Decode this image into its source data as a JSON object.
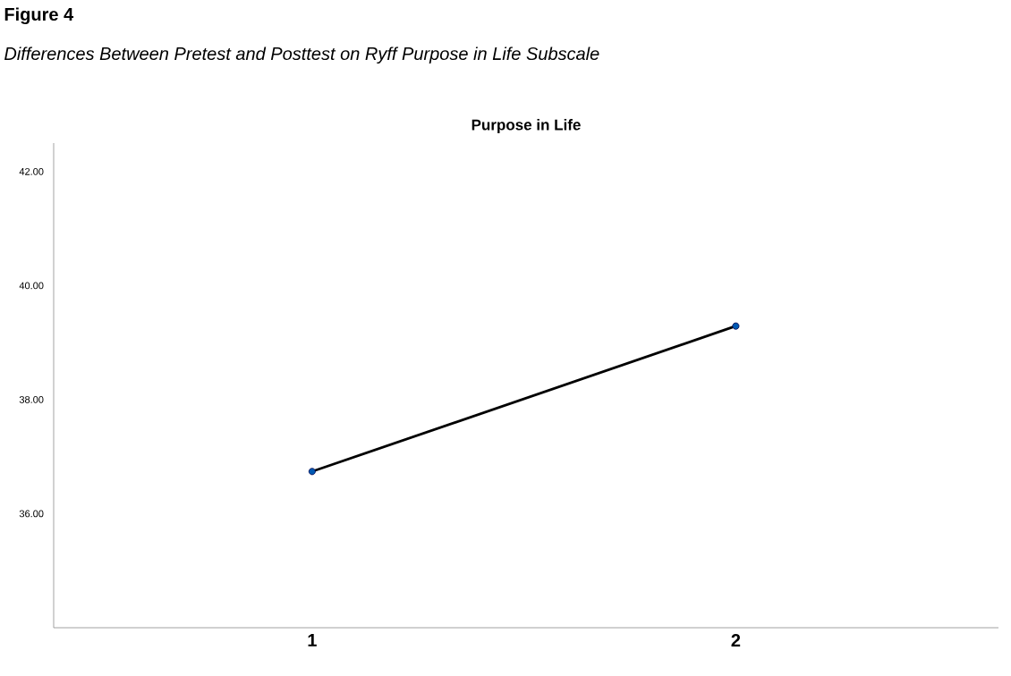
{
  "chart_data": {
    "type": "line",
    "title": "Figure 4",
    "subtitle": "Differences Between Pretest and Posttest on Ryff Purpose in Life Subscale",
    "annotations": [
      "Purpose in Life"
    ],
    "categories": [
      "1",
      "2"
    ],
    "series": [
      {
        "color": "#000000",
        "values": [
          36.74,
          39.29
        ]
      }
    ],
    "marker": "circle",
    "ylim": [
      34,
      42.5
    ],
    "yticks": [
      {
        "value": 36,
        "label": "36.00"
      },
      {
        "value": 38,
        "label": "38.00"
      },
      {
        "value": 40,
        "label": "40.00"
      },
      {
        "value": 42,
        "label": "42.00"
      }
    ],
    "grid": false
  }
}
